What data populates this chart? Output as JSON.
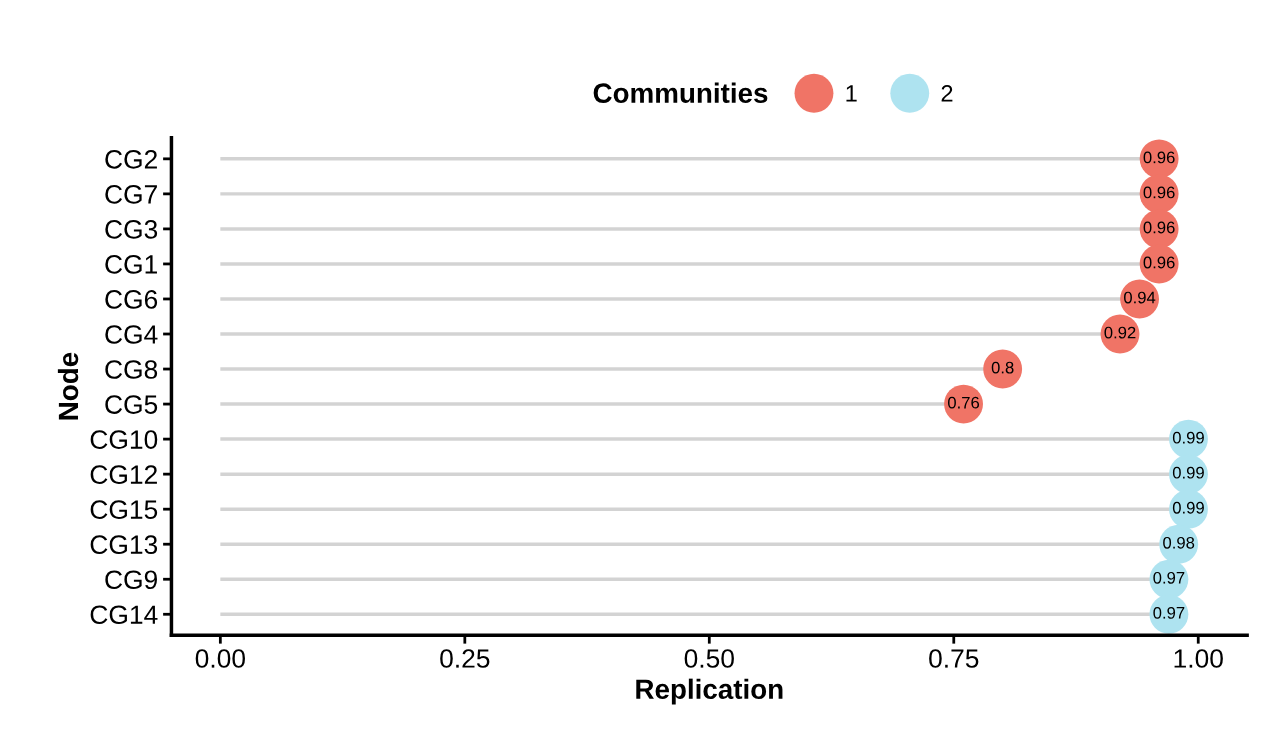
{
  "chart_data": {
    "type": "lollipop",
    "orientation": "horizontal",
    "xlabel": "Replication",
    "ylabel": "Node",
    "legend_title": "Communities",
    "legend": "top",
    "categories": [
      "CG2",
      "CG7",
      "CG3",
      "CG1",
      "CG6",
      "CG4",
      "CG8",
      "CG5",
      "CG10",
      "CG12",
      "CG15",
      "CG13",
      "CG9",
      "CG14"
    ],
    "series": [
      {
        "name": "1",
        "color": "#f07466",
        "values": [
          0.96,
          0.96,
          0.96,
          0.96,
          0.94,
          0.92,
          0.8,
          0.76,
          null,
          null,
          null,
          null,
          null,
          null
        ]
      },
      {
        "name": "2",
        "color": "#aee3f0",
        "values": [
          null,
          null,
          null,
          null,
          null,
          null,
          null,
          null,
          0.99,
          0.99,
          0.99,
          0.98,
          0.97,
          0.97
        ]
      }
    ],
    "xlim": [
      -0.05,
      1.05
    ],
    "xticks": [
      {
        "value": 0,
        "label": "0.00"
      },
      {
        "value": 0.25,
        "label": "0.25"
      },
      {
        "value": 0.5,
        "label": "0.50"
      },
      {
        "value": 0.75,
        "label": "0.75"
      },
      {
        "value": 1,
        "label": "1.00"
      }
    ],
    "data_labels": true,
    "grid": false,
    "marker": "circle"
  }
}
